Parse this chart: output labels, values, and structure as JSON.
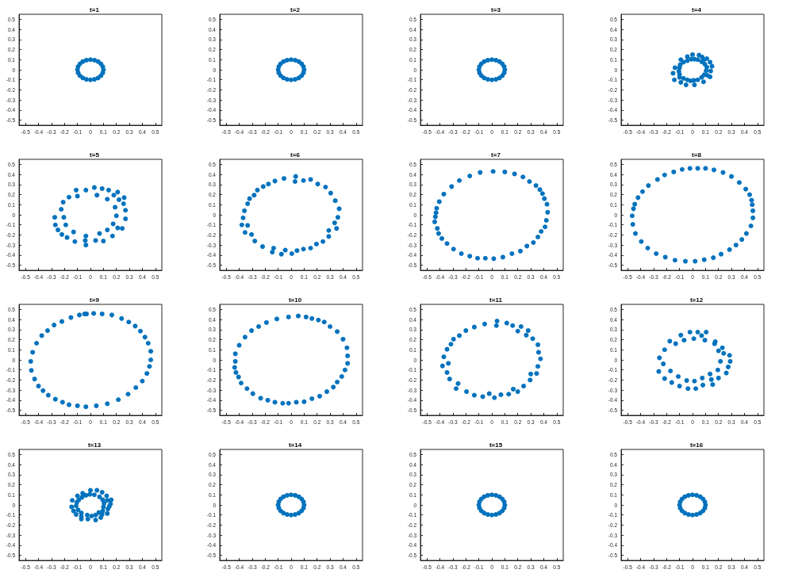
{
  "chart_data": [
    {
      "type": "scatter",
      "title": "t=1",
      "color": "#0072bd",
      "marker": "circle",
      "xlim": [
        -0.55,
        0.55
      ],
      "ylim": [
        -0.55,
        0.55
      ],
      "xticks": [
        -0.5,
        -0.4,
        -0.3,
        -0.2,
        -0.1,
        0,
        0.1,
        0.2,
        0.3,
        0.4,
        0.5
      ],
      "yticks": [
        -0.5,
        -0.4,
        -0.3,
        -0.2,
        -0.1,
        0,
        0.1,
        0.2,
        0.3,
        0.4,
        0.5
      ],
      "x": [
        0.1,
        0.095,
        0.081,
        0.059,
        0.031,
        0,
        -0.031,
        -0.059,
        -0.081,
        -0.095,
        -0.1,
        -0.095,
        -0.081,
        -0.059,
        -0.031,
        0,
        0.031,
        0.059,
        0.081,
        0.095
      ],
      "values": [
        0,
        0.031,
        0.059,
        0.081,
        0.095,
        0.1,
        0.095,
        0.081,
        0.059,
        0.031,
        0,
        -0.031,
        -0.059,
        -0.081,
        -0.095,
        -0.1,
        -0.095,
        -0.081,
        -0.059,
        -0.031
      ]
    },
    {
      "type": "scatter",
      "title": "t=2",
      "color": "#0072bd",
      "marker": "circle",
      "xlim": [
        -0.55,
        0.55
      ],
      "ylim": [
        -0.55,
        0.55
      ],
      "xticks": [
        -0.5,
        -0.4,
        -0.3,
        -0.2,
        -0.1,
        0,
        0.1,
        0.2,
        0.3,
        0.4,
        0.5
      ],
      "yticks": [
        -0.5,
        -0.4,
        -0.3,
        -0.2,
        -0.1,
        0,
        0.1,
        0.2,
        0.3,
        0.4,
        0.5
      ],
      "x": [
        0.1,
        0.095,
        0.081,
        0.059,
        0.031,
        0,
        -0.031,
        -0.059,
        -0.081,
        -0.095,
        -0.1,
        -0.095,
        -0.081,
        -0.059,
        -0.031,
        0,
        0.031,
        0.059,
        0.081,
        0.095
      ],
      "values": [
        0,
        0.031,
        0.059,
        0.081,
        0.095,
        0.1,
        0.095,
        0.081,
        0.059,
        0.031,
        0,
        -0.031,
        -0.059,
        -0.081,
        -0.095,
        -0.1,
        -0.095,
        -0.081,
        -0.059,
        -0.031
      ]
    },
    {
      "type": "scatter",
      "title": "t=3",
      "color": "#0072bd",
      "marker": "circle",
      "xlim": [
        -0.55,
        0.55
      ],
      "ylim": [
        -0.55,
        0.55
      ],
      "xticks": [
        -0.5,
        -0.4,
        -0.3,
        -0.2,
        -0.1,
        0,
        0.1,
        0.2,
        0.3,
        0.4,
        0.5
      ],
      "yticks": [
        -0.5,
        -0.4,
        -0.3,
        -0.2,
        -0.1,
        0,
        0.1,
        0.2,
        0.3,
        0.4,
        0.5
      ],
      "x": [
        0.1,
        0.095,
        0.081,
        0.059,
        0.031,
        0,
        -0.031,
        -0.059,
        -0.081,
        -0.095,
        -0.1,
        -0.095,
        -0.081,
        -0.059,
        -0.031,
        0,
        0.031,
        0.059,
        0.081,
        0.095
      ],
      "values": [
        0,
        0.031,
        0.059,
        0.081,
        0.095,
        0.1,
        0.095,
        0.081,
        0.059,
        0.031,
        0,
        -0.031,
        -0.059,
        -0.081,
        -0.095,
        -0.1,
        -0.095,
        -0.081,
        -0.059,
        -0.031
      ]
    },
    {
      "type": "scatter",
      "title": "t=4",
      "color": "#0072bd",
      "marker": "circle",
      "xlim": [
        -0.55,
        0.55
      ],
      "ylim": [
        -0.55,
        0.55
      ],
      "xticks": [
        -0.5,
        -0.4,
        -0.3,
        -0.2,
        -0.1,
        0,
        0.1,
        0.2,
        0.3,
        0.4,
        0.5
      ],
      "yticks": [
        -0.5,
        -0.4,
        -0.3,
        -0.2,
        -0.1,
        0,
        0.1,
        0.2,
        0.3,
        0.4,
        0.5
      ],
      "x": [
        0.0,
        0.05,
        -0.04,
        0.075,
        0.11,
        -0.09,
        -0.01,
        0.015,
        0.04,
        0.085,
        -0.04,
        0.07,
        -0.07,
        0.135,
        -0.095,
        0.095,
        0.15,
        -0.135,
        -0.1,
        0.11,
        -0.105,
        0.105,
        0.14,
        -0.15,
        -0.1,
        0.09,
        0.115,
        -0.1,
        0.07,
        0.135,
        -0.07,
        -0.14,
        -0.04,
        -0.015,
        0.01,
        0.04,
        -0.09,
        0.085,
        -0.05,
        0.015
      ],
      "values": [
        0.15,
        0.145,
        0.13,
        0.125,
        0.11,
        0.1,
        0.105,
        0.105,
        0.1,
        0.095,
        0.09,
        0.08,
        0.075,
        0.075,
        0.05,
        0.055,
        0.035,
        0.02,
        0.02,
        0.025,
        -0.015,
        -0.01,
        -0.012,
        -0.035,
        -0.045,
        -0.05,
        -0.055,
        -0.075,
        -0.075,
        -0.07,
        -0.085,
        -0.1,
        -0.1,
        -0.11,
        -0.105,
        -0.1,
        -0.125,
        -0.12,
        -0.15,
        -0.15
      ]
    },
    {
      "type": "scatter",
      "title": "t=5",
      "color": "#0072bd",
      "marker": "circle",
      "xlim": [
        -0.55,
        0.55
      ],
      "ylim": [
        -0.55,
        0.55
      ],
      "xticks": [
        -0.5,
        -0.4,
        -0.3,
        -0.2,
        -0.1,
        0,
        0.1,
        0.2,
        0.3,
        0.4,
        0.5
      ],
      "yticks": [
        -0.5,
        -0.4,
        -0.3,
        -0.2,
        -0.1,
        0,
        0.1,
        0.2,
        0.3,
        0.4,
        0.5
      ],
      "x": [
        0.03,
        0.09,
        -0.11,
        -0.035,
        0.14,
        0.21,
        -0.1,
        0.05,
        0.18,
        -0.165,
        0.26,
        0.13,
        0.22,
        -0.21,
        0.255,
        0.19,
        -0.225,
        0.27,
        0.2,
        -0.275,
        -0.205,
        0.27,
        -0.27,
        -0.19,
        0.175,
        0.21,
        0.245,
        -0.25,
        0.13,
        -0.13,
        0.07,
        -0.22,
        -0.035,
        0.17,
        -0.18,
        -0.04,
        0.04,
        0.1,
        -0.12,
        -0.035
      ],
      "values": [
        0.27,
        0.26,
        0.245,
        0.245,
        0.245,
        0.225,
        0.185,
        0.195,
        0.195,
        0.175,
        0.17,
        0.155,
        0.15,
        0.125,
        0.11,
        0.075,
        0.055,
        0.045,
        -0.01,
        -0.025,
        -0.025,
        -0.04,
        -0.1,
        -0.1,
        -0.09,
        -0.13,
        -0.135,
        -0.15,
        -0.15,
        -0.17,
        -0.185,
        -0.195,
        -0.21,
        -0.21,
        -0.225,
        -0.255,
        -0.255,
        -0.26,
        -0.265,
        -0.3
      ]
    },
    {
      "type": "scatter",
      "title": "t=6",
      "color": "#0072bd",
      "marker": "circle",
      "xlim": [
        -0.55,
        0.55
      ],
      "ylim": [
        -0.55,
        0.55
      ],
      "xticks": [
        -0.5,
        -0.4,
        -0.3,
        -0.2,
        -0.1,
        0,
        0.1,
        0.2,
        0.3,
        0.4,
        0.5
      ],
      "yticks": [
        -0.5,
        -0.4,
        -0.3,
        -0.2,
        -0.1,
        0,
        0.1,
        0.2,
        0.3,
        0.4,
        0.5
      ],
      "x": [
        0.035,
        -0.055,
        0.15,
        -0.125,
        0.03,
        0.095,
        -0.175,
        0.205,
        -0.215,
        0.265,
        -0.26,
        -0.285,
        0.305,
        -0.32,
        -0.335,
        0.34,
        -0.36,
        0.37,
        -0.37,
        0.36,
        -0.38,
        -0.335,
        0.335,
        0.35,
        -0.355,
        0.29,
        -0.305,
        0.29,
        -0.28,
        0.245,
        -0.22,
        0.195,
        -0.135,
        0.15,
        -0.145,
        0.095,
        -0.045,
        0.045,
        -0.075,
        0.005
      ],
      "values": [
        0.38,
        0.36,
        0.35,
        0.335,
        0.33,
        0.34,
        0.305,
        0.305,
        0.28,
        0.275,
        0.245,
        0.195,
        0.215,
        0.16,
        0.11,
        0.14,
        0.04,
        0.06,
        -0.03,
        -0.025,
        -0.1,
        -0.105,
        -0.08,
        -0.135,
        -0.175,
        -0.155,
        -0.195,
        -0.215,
        -0.26,
        -0.265,
        -0.315,
        -0.29,
        -0.33,
        -0.33,
        -0.37,
        -0.34,
        -0.35,
        -0.355,
        -0.39,
        -0.385
      ]
    },
    {
      "type": "scatter",
      "title": "t=7",
      "color": "#0072bd",
      "marker": "circle",
      "xlim": [
        -0.55,
        0.55
      ],
      "ylim": [
        -0.55,
        0.55
      ],
      "xticks": [
        -0.5,
        -0.4,
        -0.3,
        -0.2,
        -0.1,
        0,
        0.1,
        0.2,
        0.3,
        0.4,
        0.5
      ],
      "yticks": [
        -0.5,
        -0.4,
        -0.3,
        -0.2,
        -0.1,
        0,
        0.1,
        0.2,
        0.3,
        0.4,
        0.5
      ],
      "x": [
        0.01,
        0.1,
        -0.09,
        0.175,
        -0.17,
        0.24,
        -0.25,
        0.29,
        -0.31,
        0.34,
        0.37,
        -0.37,
        0.39,
        0.405,
        -0.405,
        0.425,
        -0.425,
        0.43,
        -0.43,
        -0.435,
        0.42,
        -0.44,
        0.41,
        -0.42,
        0.38,
        -0.41,
        0.355,
        -0.385,
        0.32,
        -0.345,
        0.27,
        -0.295,
        0.22,
        -0.235,
        0.155,
        -0.17,
        0.085,
        -0.11,
        -0.05,
        0.015
      ],
      "values": [
        0.43,
        0.425,
        0.42,
        0.405,
        0.385,
        0.375,
        0.34,
        0.33,
        0.28,
        0.29,
        0.25,
        0.205,
        0.21,
        0.16,
        0.13,
        0.105,
        0.065,
        0.025,
        0.02,
        -0.02,
        -0.055,
        -0.07,
        -0.12,
        -0.135,
        -0.165,
        -0.185,
        -0.22,
        -0.235,
        -0.275,
        -0.285,
        -0.31,
        -0.34,
        -0.36,
        -0.385,
        -0.385,
        -0.41,
        -0.42,
        -0.43,
        -0.43,
        -0.435
      ]
    },
    {
      "type": "scatter",
      "title": "t=8",
      "color": "#0072bd",
      "marker": "circle",
      "xlim": [
        -0.55,
        0.55
      ],
      "ylim": [
        -0.55,
        0.55
      ],
      "xticks": [
        -0.5,
        -0.4,
        -0.3,
        -0.2,
        -0.1,
        0,
        0.1,
        0.2,
        0.3,
        0.4,
        0.5
      ],
      "yticks": [
        -0.5,
        -0.4,
        -0.3,
        -0.2,
        -0.1,
        0,
        0.1,
        0.2,
        0.3,
        0.4,
        0.5
      ],
      "x": [
        0.04,
        -0.02,
        0.1,
        -0.08,
        0.165,
        -0.145,
        0.235,
        -0.215,
        0.3,
        -0.27,
        0.36,
        -0.34,
        0.41,
        -0.385,
        0.44,
        -0.42,
        0.455,
        -0.445,
        0.46,
        -0.455,
        0.465,
        -0.465,
        0.465,
        -0.46,
        0.45,
        -0.44,
        0.415,
        0.38,
        -0.395,
        0.335,
        -0.345,
        0.285,
        -0.28,
        0.22,
        -0.21,
        0.16,
        -0.135,
        0.09,
        -0.055,
        0.02
      ],
      "values": [
        0.46,
        0.46,
        0.46,
        0.45,
        0.445,
        0.425,
        0.42,
        0.395,
        0.38,
        0.35,
        0.32,
        0.29,
        0.255,
        0.23,
        0.2,
        0.17,
        0.145,
        0.105,
        0.1,
        0.06,
        0.04,
        -0.01,
        -0.03,
        -0.095,
        -0.11,
        -0.185,
        -0.185,
        -0.245,
        -0.265,
        -0.3,
        -0.33,
        -0.345,
        -0.385,
        -0.39,
        -0.42,
        -0.425,
        -0.45,
        -0.445,
        -0.46,
        -0.46
      ]
    },
    {
      "type": "scatter",
      "title": "t=9",
      "color": "#0072bd",
      "marker": "circle",
      "xlim": [
        -0.55,
        0.55
      ],
      "ylim": [
        -0.55,
        0.55
      ],
      "xticks": [
        -0.5,
        -0.4,
        -0.3,
        -0.2,
        -0.1,
        0,
        0.1,
        0.2,
        0.3,
        0.4,
        0.5
      ],
      "yticks": [
        -0.5,
        -0.4,
        -0.3,
        -0.2,
        -0.1,
        0,
        0.1,
        0.2,
        0.3,
        0.4,
        0.5
      ],
      "x": [
        0.025,
        -0.045,
        -0.03,
        0.09,
        -0.085,
        0.165,
        -0.15,
        0.24,
        -0.22,
        0.295,
        -0.28,
        0.345,
        -0.33,
        0.385,
        -0.375,
        0.42,
        -0.415,
        0.445,
        -0.445,
        0.465,
        -0.46,
        0.465,
        -0.455,
        0.455,
        -0.43,
        0.435,
        -0.4,
        0.4,
        -0.365,
        0.35,
        -0.325,
        0.29,
        -0.27,
        0.215,
        -0.215,
        0.13,
        -0.165,
        -0.1,
        -0.035,
        0.045
      ],
      "values": [
        0.46,
        0.455,
        0.455,
        0.455,
        0.445,
        0.445,
        0.42,
        0.41,
        0.38,
        0.375,
        0.345,
        0.335,
        0.29,
        0.285,
        0.24,
        0.225,
        0.165,
        0.165,
        0.075,
        0.085,
        -0.015,
        0,
        -0.105,
        -0.065,
        -0.19,
        -0.135,
        -0.26,
        -0.21,
        -0.305,
        -0.275,
        -0.35,
        -0.34,
        -0.39,
        -0.395,
        -0.42,
        -0.435,
        -0.445,
        -0.455,
        -0.465,
        -0.455
      ]
    },
    {
      "type": "scatter",
      "title": "t=10",
      "color": "#0072bd",
      "marker": "circle",
      "xlim": [
        -0.55,
        0.55
      ],
      "ylim": [
        -0.55,
        0.55
      ],
      "xticks": [
        -0.5,
        -0.4,
        -0.3,
        -0.2,
        -0.1,
        0,
        0.1,
        0.2,
        0.3,
        0.4,
        0.5
      ],
      "yticks": [
        -0.5,
        -0.4,
        -0.3,
        -0.2,
        -0.1,
        0,
        0.1,
        0.2,
        0.3,
        0.4,
        0.5
      ],
      "x": [
        0.055,
        -0.02,
        0.115,
        -0.11,
        0.16,
        0.21,
        -0.19,
        0.255,
        -0.25,
        0.3,
        -0.305,
        0.355,
        -0.355,
        0.4,
        -0.4,
        0.43,
        -0.43,
        0.435,
        -0.43,
        0.435,
        -0.435,
        0.415,
        -0.425,
        0.39,
        -0.405,
        0.355,
        -0.385,
        -0.34,
        0.325,
        0.275,
        -0.295,
        0.22,
        -0.235,
        0.16,
        -0.18,
        -0.125,
        0.1,
        -0.065,
        -0.02,
        0.04
      ],
      "values": [
        0.435,
        0.425,
        0.425,
        0.405,
        0.41,
        0.395,
        0.37,
        0.375,
        0.33,
        0.33,
        0.29,
        0.28,
        0.225,
        0.205,
        0.145,
        0.12,
        0.06,
        0.04,
        -0.015,
        -0.035,
        -0.075,
        -0.1,
        -0.125,
        -0.165,
        -0.17,
        -0.22,
        -0.23,
        -0.285,
        -0.27,
        -0.315,
        -0.335,
        -0.36,
        -0.38,
        -0.385,
        -0.4,
        -0.42,
        -0.415,
        -0.43,
        -0.43,
        -0.42
      ]
    },
    {
      "type": "scatter",
      "title": "t=11",
      "color": "#0072bd",
      "marker": "circle",
      "xlim": [
        -0.55,
        0.55
      ],
      "ylim": [
        -0.55,
        0.55
      ],
      "xticks": [
        -0.5,
        -0.4,
        -0.3,
        -0.2,
        -0.1,
        0,
        0.1,
        0.2,
        0.3,
        0.4,
        0.5
      ],
      "yticks": [
        -0.5,
        -0.4,
        -0.3,
        -0.2,
        -0.1,
        0,
        0.1,
        0.2,
        0.3,
        0.4,
        0.5
      ],
      "x": [
        0.04,
        0.115,
        -0.055,
        0.035,
        0.16,
        -0.135,
        0.225,
        0.28,
        0.2,
        -0.2,
        -0.25,
        0.265,
        -0.295,
        0.315,
        -0.315,
        0.355,
        -0.345,
        0.36,
        -0.37,
        0.375,
        -0.335,
        -0.38,
        0.355,
        -0.345,
        0.3,
        0.345,
        -0.325,
        0.295,
        -0.26,
        0.245,
        -0.275,
        0.165,
        -0.195,
        0.2,
        -0.02,
        -0.135,
        0.07,
        0.13,
        -0.07,
        0.02
      ],
      "values": [
        0.385,
        0.365,
        0.355,
        0.34,
        0.34,
        0.325,
        0.33,
        0.29,
        0.285,
        0.29,
        0.24,
        0.245,
        0.205,
        0.21,
        0.155,
        0.15,
        0.105,
        0.075,
        0.03,
        0.01,
        -0.035,
        -0.06,
        -0.065,
        -0.125,
        -0.14,
        -0.135,
        -0.19,
        -0.2,
        -0.235,
        -0.26,
        -0.285,
        -0.29,
        -0.315,
        -0.315,
        -0.335,
        -0.35,
        -0.345,
        -0.34,
        -0.365,
        -0.375
      ]
    },
    {
      "type": "scatter",
      "title": "t=12",
      "color": "#0072bd",
      "marker": "circle",
      "xlim": [
        -0.55,
        0.55
      ],
      "ylim": [
        -0.55,
        0.55
      ],
      "xticks": [
        -0.5,
        -0.4,
        -0.3,
        -0.2,
        -0.1,
        0,
        0.1,
        0.2,
        0.3,
        0.4,
        0.5
      ],
      "yticks": [
        -0.5,
        -0.4,
        -0.3,
        -0.2,
        -0.1,
        0,
        0.1,
        0.2,
        0.3,
        0.4,
        0.5
      ],
      "x": [
        -0.02,
        0.04,
        0.105,
        -0.09,
        0.07,
        0.01,
        0.095,
        -0.065,
        -0.175,
        0.175,
        -0.13,
        0.17,
        0.23,
        -0.215,
        0.2,
        0.24,
        0.285,
        -0.255,
        0.215,
        0.29,
        -0.225,
        0.275,
        0.195,
        -0.26,
        -0.17,
        0.26,
        0.135,
        -0.11,
        0.075,
        0.2,
        -0.215,
        0.145,
        -0.045,
        0.015,
        -0.16,
        0.155,
        0.08,
        -0.1,
        -0.035,
        0.025
      ],
      "values": [
        0.275,
        0.275,
        0.275,
        0.245,
        0.24,
        0.21,
        0.195,
        0.195,
        0.185,
        0.18,
        0.16,
        0.16,
        0.12,
        0.1,
        0.09,
        0.065,
        0.045,
        0.02,
        -0.015,
        -0.015,
        -0.04,
        -0.07,
        -0.1,
        -0.115,
        -0.11,
        -0.13,
        -0.14,
        -0.165,
        -0.18,
        -0.18,
        -0.185,
        -0.195,
        -0.205,
        -0.21,
        -0.225,
        -0.245,
        -0.25,
        -0.26,
        -0.285,
        -0.285
      ]
    },
    {
      "type": "scatter",
      "title": "t=13",
      "color": "#0072bd",
      "marker": "circle",
      "xlim": [
        -0.55,
        0.55
      ],
      "ylim": [
        -0.55,
        0.55
      ],
      "xticks": [
        -0.5,
        -0.4,
        -0.3,
        -0.2,
        -0.1,
        0,
        0.1,
        0.2,
        0.3,
        0.4,
        0.5
      ],
      "yticks": [
        -0.5,
        -0.4,
        -0.3,
        -0.2,
        -0.1,
        0,
        0.1,
        0.2,
        0.3,
        0.4,
        0.5
      ],
      "x": [
        0.0,
        0.05,
        0.09,
        -0.06,
        -0.1,
        -0.035,
        -0.005,
        0.03,
        0.125,
        -0.065,
        0.07,
        -0.09,
        0.095,
        0.13,
        0.16,
        -0.14,
        -0.105,
        0.105,
        0.155,
        -0.11,
        -0.145,
        0.1,
        0.145,
        -0.095,
        0.135,
        -0.13,
        0.095,
        -0.07,
        0.065,
        -0.11,
        0.13,
        0.09,
        -0.025,
        0.01,
        0.04,
        -0.07,
        0.08,
        -0.07,
        -0.02,
        0.04
      ],
      "values": [
        0.145,
        0.145,
        0.125,
        0.115,
        0.09,
        0.095,
        0.105,
        0.1,
        0.09,
        0.075,
        0.08,
        0.05,
        0.05,
        0.045,
        0.05,
        0.045,
        0.025,
        0.015,
        0.01,
        -0.01,
        -0.02,
        -0.02,
        -0.015,
        -0.05,
        -0.04,
        -0.06,
        -0.06,
        -0.08,
        -0.075,
        -0.095,
        -0.085,
        -0.095,
        -0.1,
        -0.11,
        -0.1,
        -0.115,
        -0.125,
        -0.14,
        -0.14,
        -0.15
      ]
    },
    {
      "type": "scatter",
      "title": "t=14",
      "color": "#0072bd",
      "marker": "circle",
      "xlim": [
        -0.55,
        0.55
      ],
      "ylim": [
        -0.55,
        0.55
      ],
      "xticks": [
        -0.5,
        -0.4,
        -0.3,
        -0.2,
        -0.1,
        0,
        0.1,
        0.2,
        0.3,
        0.4,
        0.5
      ],
      "yticks": [
        -0.5,
        -0.4,
        -0.3,
        -0.2,
        -0.1,
        0,
        0.1,
        0.2,
        0.3,
        0.4,
        0.5
      ],
      "x": [
        0.1,
        0.095,
        0.081,
        0.059,
        0.031,
        0,
        -0.031,
        -0.059,
        -0.081,
        -0.095,
        -0.1,
        -0.095,
        -0.081,
        -0.059,
        -0.031,
        0,
        0.031,
        0.059,
        0.081,
        0.095
      ],
      "values": [
        0,
        0.031,
        0.059,
        0.081,
        0.095,
        0.1,
        0.095,
        0.081,
        0.059,
        0.031,
        0,
        -0.031,
        -0.059,
        -0.081,
        -0.095,
        -0.1,
        -0.095,
        -0.081,
        -0.059,
        -0.031
      ]
    },
    {
      "type": "scatter",
      "title": "t=15",
      "color": "#0072bd",
      "marker": "circle",
      "xlim": [
        -0.55,
        0.55
      ],
      "ylim": [
        -0.55,
        0.55
      ],
      "xticks": [
        -0.5,
        -0.4,
        -0.3,
        -0.2,
        -0.1,
        0,
        0.1,
        0.2,
        0.3,
        0.4,
        0.5
      ],
      "yticks": [
        -0.5,
        -0.4,
        -0.3,
        -0.2,
        -0.1,
        0,
        0.1,
        0.2,
        0.3,
        0.4,
        0.5
      ],
      "x": [
        0.1,
        0.095,
        0.081,
        0.059,
        0.031,
        0,
        -0.031,
        -0.059,
        -0.081,
        -0.095,
        -0.1,
        -0.095,
        -0.081,
        -0.059,
        -0.031,
        0,
        0.031,
        0.059,
        0.081,
        0.095
      ],
      "values": [
        0,
        0.031,
        0.059,
        0.081,
        0.095,
        0.1,
        0.095,
        0.081,
        0.059,
        0.031,
        0,
        -0.031,
        -0.059,
        -0.081,
        -0.095,
        -0.1,
        -0.095,
        -0.081,
        -0.059,
        -0.031
      ]
    },
    {
      "type": "scatter",
      "title": "t=16",
      "color": "#0072bd",
      "marker": "circle",
      "xlim": [
        -0.55,
        0.55
      ],
      "ylim": [
        -0.55,
        0.55
      ],
      "xticks": [
        -0.5,
        -0.4,
        -0.3,
        -0.2,
        -0.1,
        0,
        0.1,
        0.2,
        0.3,
        0.4,
        0.5
      ],
      "yticks": [
        -0.5,
        -0.4,
        -0.3,
        -0.2,
        -0.1,
        0,
        0.1,
        0.2,
        0.3,
        0.4,
        0.5
      ],
      "x": [
        0.1,
        0.095,
        0.081,
        0.059,
        0.031,
        0,
        -0.031,
        -0.059,
        -0.081,
        -0.095,
        -0.1,
        -0.095,
        -0.081,
        -0.059,
        -0.031,
        0,
        0.031,
        0.059,
        0.081,
        0.095
      ],
      "values": [
        0,
        0.031,
        0.059,
        0.081,
        0.095,
        0.1,
        0.095,
        0.081,
        0.059,
        0.031,
        0,
        -0.031,
        -0.059,
        -0.081,
        -0.095,
        -0.1,
        -0.095,
        -0.081,
        -0.059,
        -0.031
      ]
    }
  ]
}
